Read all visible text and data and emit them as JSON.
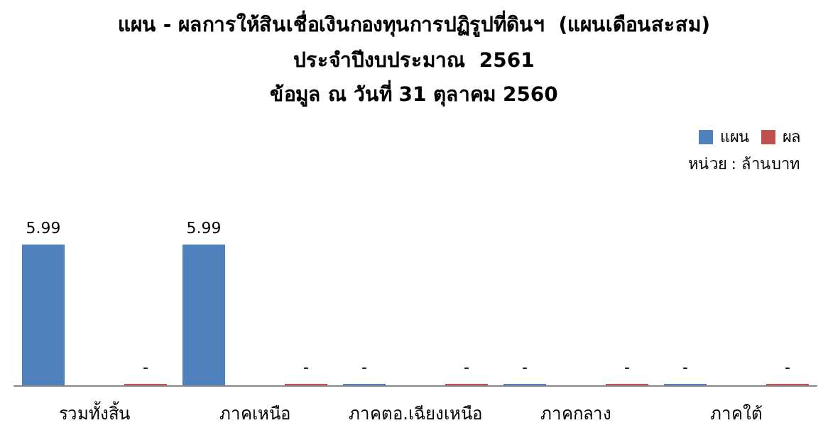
{
  "chart_data": {
    "type": "bar",
    "title": "แผน - ผลการให้สินเชื่อเงินกองทุนการปฏิรูปที่ดินฯ  (แผนเดือนสะสม)",
    "subtitle": "ประจำปีงบประมาณ  2561\nข้อมูล ณ วันที่ 31 ตุลาคม 2560",
    "annotations": [
      "หน่วย : ล้านบาท"
    ],
    "categories": [
      "รวมทั้งสิ้น",
      "ภาคเหนือ",
      "ภาคตอ.เฉียงเหนือ",
      "ภาคกลาง",
      "ภาคใต้"
    ],
    "series": [
      {
        "name": "แผน",
        "color": "#4f81bd",
        "values": [
          5.99,
          5.99,
          0,
          0,
          0
        ],
        "value_labels": [
          "5.99",
          "5.99",
          "-",
          "-",
          "-"
        ]
      },
      {
        "name": "ผล",
        "color": "#c0504d",
        "values": [
          0,
          0,
          0,
          0,
          0
        ],
        "value_labels": [
          "-",
          "-",
          "-",
          "-",
          "-"
        ]
      }
    ],
    "legend": "top right"
  }
}
